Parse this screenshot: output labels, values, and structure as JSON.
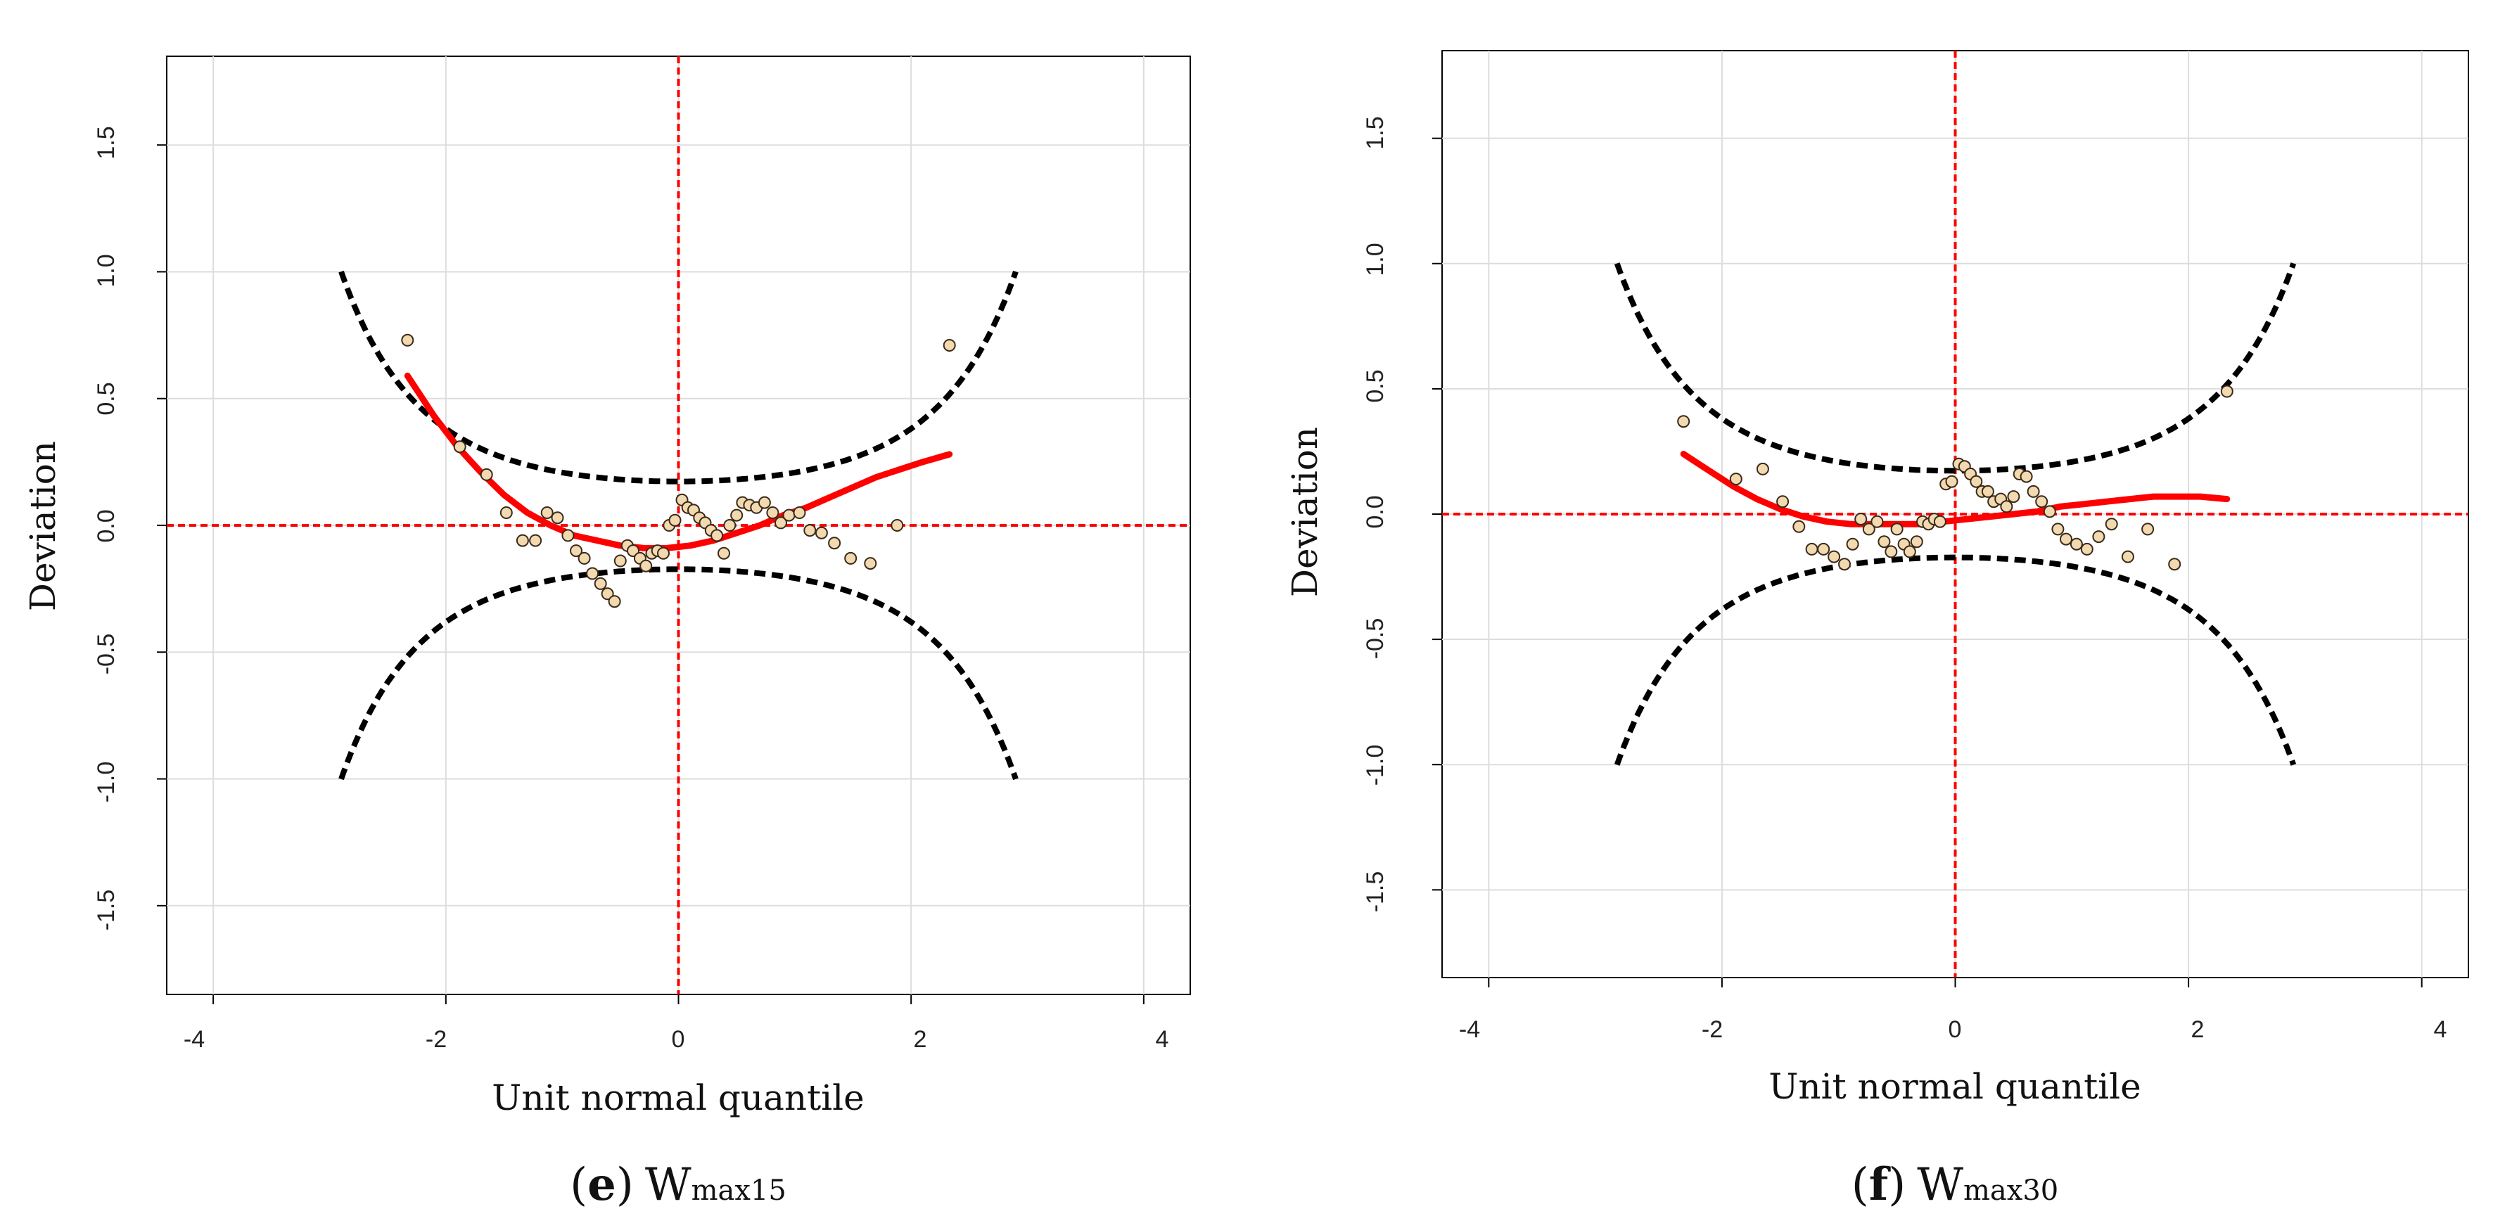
{
  "chart_data": [
    {
      "type": "scatter",
      "panel": "e",
      "caption": {
        "letter": "e",
        "open": "(",
        "close": ")",
        "main": "W",
        "sub": "max15"
      },
      "xlabel": "Unit normal quantile",
      "ylabel": "Deviation",
      "xlim": [
        -4.4,
        4.4
      ],
      "ylim": [
        -1.85,
        1.85
      ],
      "xticks": [
        -4,
        -2,
        0,
        2,
        4
      ],
      "xtick_labels": [
        "-4",
        "-2",
        "0",
        "2",
        "4"
      ],
      "yticks": [
        -1.5,
        -1.0,
        -0.5,
        0.0,
        0.5,
        1.0,
        1.5
      ],
      "ytick_labels": [
        "-1.5",
        "-1.0",
        "-0.5",
        "0.0",
        "0.5",
        "1.0",
        "1.5"
      ],
      "grid": true,
      "colors": {
        "points_fill": "#F2D9B0",
        "points_edge": "#3A2A1A",
        "smooth": "#FF0000",
        "bounds": "#000000",
        "refline": "#FF0000",
        "grid": "#DDDDDD"
      },
      "points": [
        [
          -2.33,
          0.73
        ],
        [
          -1.88,
          0.31
        ],
        [
          -1.65,
          0.2
        ],
        [
          -1.48,
          0.05
        ],
        [
          -1.34,
          -0.06
        ],
        [
          -1.23,
          -0.06
        ],
        [
          -1.13,
          0.05
        ],
        [
          -1.04,
          0.03
        ],
        [
          -0.95,
          -0.04
        ],
        [
          -0.88,
          -0.1
        ],
        [
          -0.81,
          -0.13
        ],
        [
          -0.74,
          -0.19
        ],
        [
          -0.67,
          -0.23
        ],
        [
          -0.61,
          -0.27
        ],
        [
          -0.55,
          -0.3
        ],
        [
          -0.5,
          -0.14
        ],
        [
          -0.44,
          -0.08
        ],
        [
          -0.39,
          -0.1
        ],
        [
          -0.33,
          -0.13
        ],
        [
          -0.28,
          -0.16
        ],
        [
          -0.23,
          -0.11
        ],
        [
          -0.18,
          -0.1
        ],
        [
          -0.13,
          -0.11
        ],
        [
          -0.08,
          0.0
        ],
        [
          -0.03,
          0.02
        ],
        [
          0.03,
          0.1
        ],
        [
          0.08,
          0.07
        ],
        [
          0.13,
          0.06
        ],
        [
          0.18,
          0.03
        ],
        [
          0.23,
          0.01
        ],
        [
          0.28,
          -0.02
        ],
        [
          0.33,
          -0.04
        ],
        [
          0.39,
          -0.11
        ],
        [
          0.44,
          0.0
        ],
        [
          0.5,
          0.04
        ],
        [
          0.55,
          0.09
        ],
        [
          0.61,
          0.08
        ],
        [
          0.67,
          0.07
        ],
        [
          0.74,
          0.09
        ],
        [
          0.81,
          0.05
        ],
        [
          0.88,
          0.01
        ],
        [
          0.95,
          0.04
        ],
        [
          1.04,
          0.05
        ],
        [
          1.13,
          -0.02
        ],
        [
          1.23,
          -0.03
        ],
        [
          1.34,
          -0.07
        ],
        [
          1.48,
          -0.13
        ],
        [
          1.65,
          -0.15
        ],
        [
          1.88,
          0.0
        ],
        [
          2.33,
          0.71
        ]
      ],
      "smooth_curve": [
        [
          -2.33,
          0.59
        ],
        [
          -2.1,
          0.43
        ],
        [
          -1.9,
          0.31
        ],
        [
          -1.7,
          0.21
        ],
        [
          -1.5,
          0.12
        ],
        [
          -1.3,
          0.05
        ],
        [
          -1.1,
          -0.0
        ],
        [
          -0.9,
          -0.04
        ],
        [
          -0.7,
          -0.06
        ],
        [
          -0.5,
          -0.08
        ],
        [
          -0.3,
          -0.09
        ],
        [
          -0.1,
          -0.09
        ],
        [
          0.1,
          -0.08
        ],
        [
          0.3,
          -0.06
        ],
        [
          0.5,
          -0.03
        ],
        [
          0.7,
          0.0
        ],
        [
          0.9,
          0.04
        ],
        [
          1.1,
          0.07
        ],
        [
          1.3,
          0.11
        ],
        [
          1.5,
          0.15
        ],
        [
          1.7,
          0.19
        ],
        [
          1.9,
          0.22
        ],
        [
          2.1,
          0.25
        ],
        [
          2.33,
          0.28
        ]
      ],
      "bound_scale": 0.346,
      "bound_x_range": [
        -2.9,
        2.9
      ]
    },
    {
      "type": "scatter",
      "panel": "f",
      "caption": {
        "letter": "f",
        "open": "(",
        "close": ")",
        "main": "W",
        "sub": "max30"
      },
      "xlabel": "Unit normal quantile",
      "ylabel": "Deviation",
      "xlim": [
        -4.4,
        4.4
      ],
      "ylim": [
        -1.85,
        1.85
      ],
      "xticks": [
        -4,
        -2,
        0,
        2,
        4
      ],
      "xtick_labels": [
        "-4",
        "-2",
        "0",
        "2",
        "4"
      ],
      "yticks": [
        -1.5,
        -1.0,
        -0.5,
        0.0,
        0.5,
        1.0,
        1.5
      ],
      "ytick_labels": [
        "-1.5",
        "-1.0",
        "-0.5",
        "0.0",
        "0.5",
        "1.0",
        "1.5"
      ],
      "grid": true,
      "colors": {
        "points_fill": "#F2D9B0",
        "points_edge": "#3A2A1A",
        "smooth": "#FF0000",
        "bounds": "#000000",
        "refline": "#FF0000",
        "grid": "#DDDDDD"
      },
      "points": [
        [
          -2.33,
          0.37
        ],
        [
          -1.88,
          0.14
        ],
        [
          -1.65,
          0.18
        ],
        [
          -1.48,
          0.05
        ],
        [
          -1.34,
          -0.05
        ],
        [
          -1.23,
          -0.14
        ],
        [
          -1.13,
          -0.14
        ],
        [
          -1.04,
          -0.17
        ],
        [
          -0.95,
          -0.2
        ],
        [
          -0.88,
          -0.12
        ],
        [
          -0.81,
          -0.02
        ],
        [
          -0.74,
          -0.06
        ],
        [
          -0.67,
          -0.03
        ],
        [
          -0.61,
          -0.11
        ],
        [
          -0.55,
          -0.15
        ],
        [
          -0.5,
          -0.06
        ],
        [
          -0.44,
          -0.12
        ],
        [
          -0.39,
          -0.15
        ],
        [
          -0.33,
          -0.11
        ],
        [
          -0.28,
          -0.03
        ],
        [
          -0.23,
          -0.04
        ],
        [
          -0.18,
          -0.02
        ],
        [
          -0.13,
          -0.03
        ],
        [
          -0.08,
          0.12
        ],
        [
          -0.03,
          0.13
        ],
        [
          0.03,
          0.2
        ],
        [
          0.08,
          0.19
        ],
        [
          0.13,
          0.16
        ],
        [
          0.18,
          0.13
        ],
        [
          0.23,
          0.09
        ],
        [
          0.28,
          0.09
        ],
        [
          0.33,
          0.05
        ],
        [
          0.39,
          0.06
        ],
        [
          0.44,
          0.03
        ],
        [
          0.5,
          0.07
        ],
        [
          0.55,
          0.16
        ],
        [
          0.61,
          0.15
        ],
        [
          0.67,
          0.09
        ],
        [
          0.74,
          0.05
        ],
        [
          0.81,
          0.01
        ],
        [
          0.88,
          -0.06
        ],
        [
          0.95,
          -0.1
        ],
        [
          1.04,
          -0.12
        ],
        [
          1.13,
          -0.14
        ],
        [
          1.23,
          -0.09
        ],
        [
          1.34,
          -0.04
        ],
        [
          1.48,
          -0.17
        ],
        [
          1.65,
          -0.06
        ],
        [
          1.88,
          -0.2
        ],
        [
          2.33,
          0.49
        ]
      ],
      "smooth_curve": [
        [
          -2.33,
          0.24
        ],
        [
          -2.1,
          0.17
        ],
        [
          -1.9,
          0.11
        ],
        [
          -1.7,
          0.06
        ],
        [
          -1.5,
          0.02
        ],
        [
          -1.3,
          -0.01
        ],
        [
          -1.1,
          -0.03
        ],
        [
          -0.9,
          -0.04
        ],
        [
          -0.7,
          -0.04
        ],
        [
          -0.5,
          -0.04
        ],
        [
          -0.3,
          -0.04
        ],
        [
          -0.1,
          -0.03
        ],
        [
          0.1,
          -0.02
        ],
        [
          0.3,
          -0.01
        ],
        [
          0.5,
          0.0
        ],
        [
          0.7,
          0.01
        ],
        [
          0.9,
          0.03
        ],
        [
          1.1,
          0.04
        ],
        [
          1.3,
          0.05
        ],
        [
          1.5,
          0.06
        ],
        [
          1.7,
          0.07
        ],
        [
          1.9,
          0.07
        ],
        [
          2.1,
          0.07
        ],
        [
          2.33,
          0.06
        ]
      ],
      "bound_scale": 0.346,
      "bound_x_range": [
        -2.9,
        2.9
      ]
    }
  ]
}
